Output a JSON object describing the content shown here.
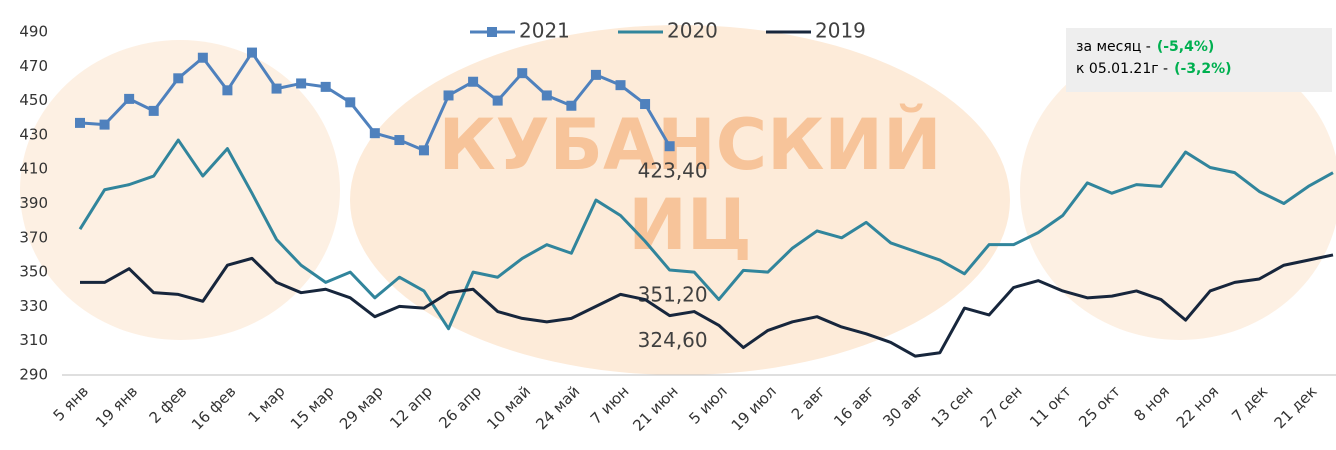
{
  "chart_data": {
    "type": "line",
    "watermark": [
      "КУБАНСКИЙ",
      "ИЦ"
    ],
    "categories": [
      "5 янв",
      null,
      "19 янв",
      null,
      "2 фев",
      null,
      "16 фев",
      null,
      "1 мар",
      null,
      "15 мар",
      null,
      "29 мар",
      null,
      "12 апр",
      null,
      "26 апр",
      null,
      "10 май",
      null,
      "24 май",
      null,
      "7 июн",
      null,
      "21 июн",
      null,
      "5 июл",
      null,
      "19 июл",
      null,
      "2 авг",
      null,
      "16 авг",
      null,
      "30 авг",
      null,
      "13 сен",
      null,
      "27 сен",
      null,
      "11 окт",
      null,
      "25 окт",
      null,
      "8 ноя",
      null,
      "22 ноя",
      null,
      "7 дек",
      null,
      "21 дек",
      null
    ],
    "series": [
      {
        "name": "2021",
        "color": "#4f81bd",
        "marker": "square",
        "values": [
          437,
          436,
          451,
          444,
          463,
          475,
          456,
          478,
          457,
          460,
          458,
          449,
          431,
          427,
          421,
          453,
          461,
          450,
          466,
          453,
          447,
          465,
          459,
          448,
          423.4,
          null,
          null,
          null,
          null,
          null,
          null,
          null,
          null,
          null,
          null,
          null,
          null,
          null,
          null,
          null,
          null,
          null,
          null,
          null,
          null,
          null,
          null,
          null,
          null,
          null,
          null,
          null
        ],
        "value_labels": [
          null,
          null,
          null,
          null,
          null,
          null,
          null,
          null,
          null,
          null,
          null,
          null,
          null,
          null,
          null,
          null,
          null,
          null,
          null,
          null,
          null,
          null,
          null,
          null,
          "423,40",
          null,
          null,
          null,
          null,
          null,
          null,
          null,
          null,
          null,
          null,
          null,
          null,
          null,
          null,
          null,
          null,
          null,
          null,
          null,
          null,
          null,
          null,
          null,
          null,
          null,
          null,
          null
        ]
      },
      {
        "name": "2020",
        "color": "#31859c",
        "values": [
          375,
          398,
          401,
          406,
          427,
          406,
          422,
          396,
          369,
          354,
          344,
          350,
          335,
          347,
          339,
          317,
          350,
          347,
          358,
          366,
          361,
          392,
          383,
          368,
          351.2,
          350,
          334,
          351,
          350,
          364,
          374,
          370,
          379,
          367,
          362,
          357,
          349,
          366,
          366,
          373,
          383,
          402,
          396,
          401,
          400,
          420,
          411,
          408,
          397,
          390,
          400,
          408
        ],
        "value_labels": [
          null,
          null,
          null,
          null,
          null,
          null,
          null,
          null,
          null,
          null,
          null,
          null,
          null,
          null,
          null,
          null,
          null,
          null,
          null,
          null,
          null,
          null,
          null,
          null,
          "351,20",
          null,
          null,
          null,
          null,
          null,
          null,
          null,
          null,
          null,
          null,
          null,
          null,
          null,
          null,
          null,
          null,
          null,
          null,
          null,
          null,
          null,
          null,
          null,
          null,
          null,
          null,
          null
        ]
      },
      {
        "name": "2019",
        "color": "#17263c",
        "values": [
          344,
          344,
          352,
          338,
          337,
          333,
          354,
          358,
          344,
          338,
          340,
          335,
          324,
          330,
          329,
          338,
          340,
          327,
          323,
          321,
          323,
          330,
          337,
          334,
          324.6,
          327,
          319,
          306,
          316,
          321,
          324,
          318,
          314,
          309,
          301,
          303,
          329,
          325,
          341,
          345,
          339,
          335,
          336,
          339,
          334,
          322,
          339,
          344,
          346,
          354,
          357,
          360
        ],
        "value_labels": [
          null,
          null,
          null,
          null,
          null,
          null,
          null,
          null,
          null,
          null,
          null,
          null,
          null,
          null,
          null,
          null,
          null,
          null,
          null,
          null,
          null,
          null,
          null,
          null,
          "324,60",
          null,
          null,
          null,
          null,
          null,
          null,
          null,
          null,
          null,
          null,
          null,
          null,
          null,
          null,
          null,
          null,
          null,
          null,
          null,
          null,
          null,
          null,
          null,
          null,
          null,
          null,
          null
        ]
      }
    ],
    "ylim": [
      290,
      490
    ],
    "yticks": [
      290,
      310,
      330,
      350,
      370,
      390,
      410,
      430,
      450,
      470,
      490
    ],
    "grid": false,
    "info": [
      {
        "text": "за месяц -",
        "value": "(-5,4%)"
      },
      {
        "text": "к 05.01.21г -",
        "value": "(-3,2%)"
      }
    ],
    "info_value_color": "#00b050"
  }
}
